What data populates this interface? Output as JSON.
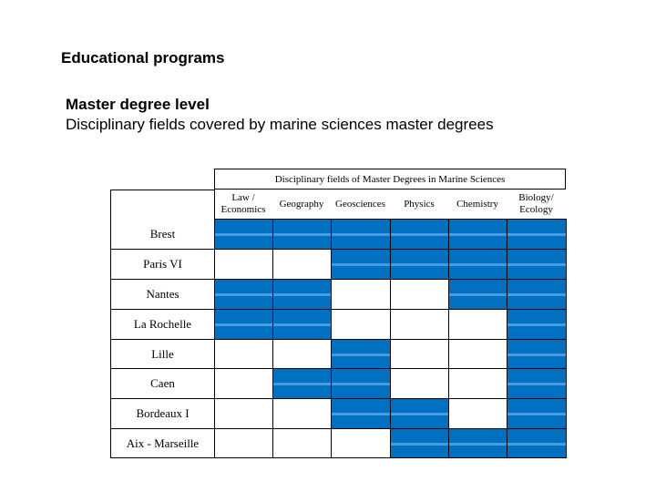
{
  "heading": "Educational programs",
  "level": "Master degree level",
  "description": "Disciplinary fields covered by marine sciences master degrees",
  "table": {
    "super_header": "Disciplinary fields of Master Degrees in Marine Sciences",
    "columns": [
      "Law / Economics",
      "Geography",
      "Geosciences",
      "Physics",
      "Chemistry",
      "Biology/ Ecology"
    ],
    "rows": [
      {
        "label": "Brest",
        "fields": [
          1,
          1,
          1,
          1,
          1,
          1
        ]
      },
      {
        "label": "Paris VI",
        "fields": [
          0,
          0,
          1,
          1,
          1,
          1
        ]
      },
      {
        "label": "Nantes",
        "fields": [
          1,
          1,
          0,
          0,
          1,
          1
        ]
      },
      {
        "label": "La Rochelle",
        "fields": [
          1,
          1,
          0,
          0,
          0,
          1
        ]
      },
      {
        "label": "Lille",
        "fields": [
          0,
          0,
          1,
          0,
          0,
          1
        ]
      },
      {
        "label": "Caen",
        "fields": [
          0,
          1,
          1,
          0,
          0,
          1
        ]
      },
      {
        "label": "Bordeaux I",
        "fields": [
          0,
          0,
          1,
          1,
          0,
          1
        ]
      },
      {
        "label": "Aix - Marseille",
        "fields": [
          0,
          0,
          0,
          1,
          1,
          1
        ]
      }
    ]
  },
  "colors": {
    "filled": "#0070C0",
    "stripe": "#4a9ae0",
    "empty": "#ffffff"
  }
}
